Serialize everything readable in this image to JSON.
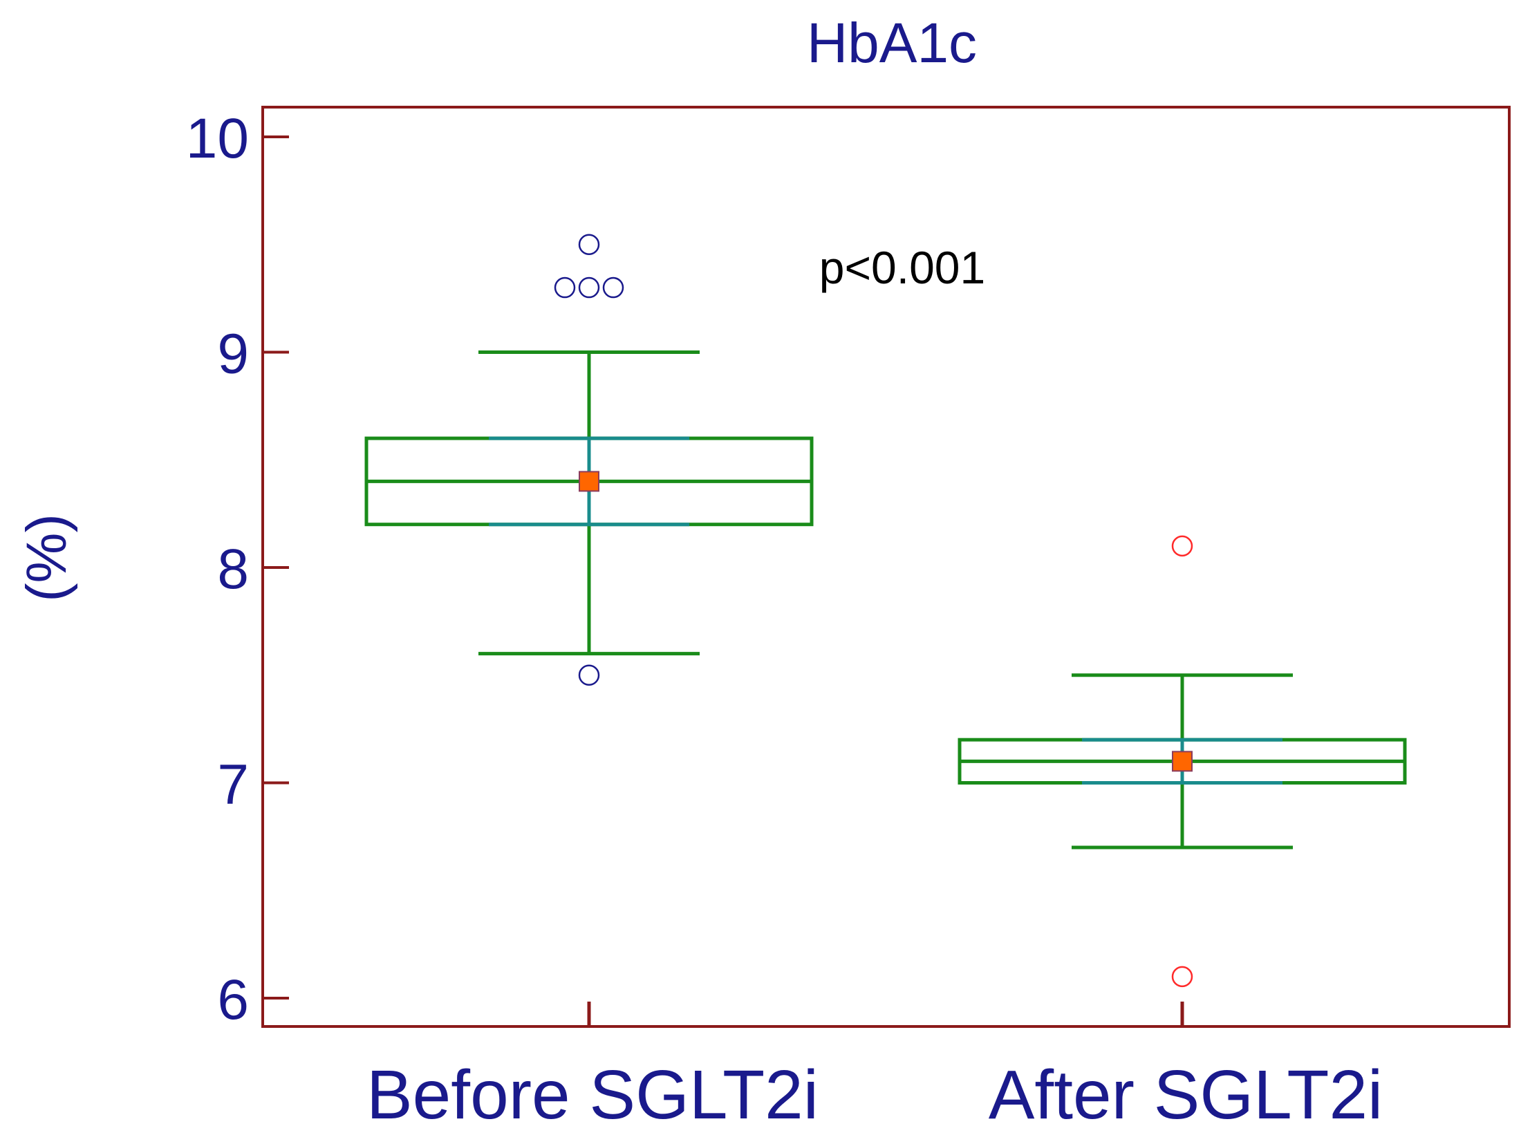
{
  "chart_data": {
    "type": "box",
    "title": "HbA1c",
    "xlabel": "",
    "ylabel": "(%)",
    "ylim": [
      5.87,
      10.13
    ],
    "yticks": [
      6,
      7,
      8,
      9,
      10
    ],
    "ytick_labels": [
      "6",
      "7",
      "8",
      "9",
      "10"
    ],
    "categories": [
      "Before SGLT2i",
      "After SGLT2i"
    ],
    "grid": false,
    "annotation": "p<0.001",
    "boxes": [
      {
        "category": "Before SGLT2i",
        "whisker_low": 7.6,
        "q1": 8.2,
        "median": 8.4,
        "q3": 8.6,
        "whisker_high": 9.0,
        "mean": 8.4,
        "ci_low": 8.2,
        "ci_high": 8.6,
        "outliers": [
          9.5,
          9.3,
          9.3,
          9.3,
          7.5
        ]
      },
      {
        "category": "After SGLT2i",
        "whisker_low": 6.7,
        "q1": 7.0,
        "median": 7.1,
        "q3": 7.2,
        "whisker_high": 7.5,
        "mean": 7.1,
        "ci_low": 7.0,
        "ci_high": 7.2,
        "outliers": [
          8.1,
          6.1
        ]
      }
    ],
    "colors": {
      "text": "#1a1a8c",
      "frame": "#8b1a1a",
      "box": "#1a8c1a",
      "ci": "#1a8c8c",
      "mean_fill": "#ff6600",
      "mean_stroke": "#8c3c5c",
      "outlier_before": "#1a1a8c",
      "outlier_after": "#ff2a2a",
      "annotation": "#000000"
    }
  }
}
